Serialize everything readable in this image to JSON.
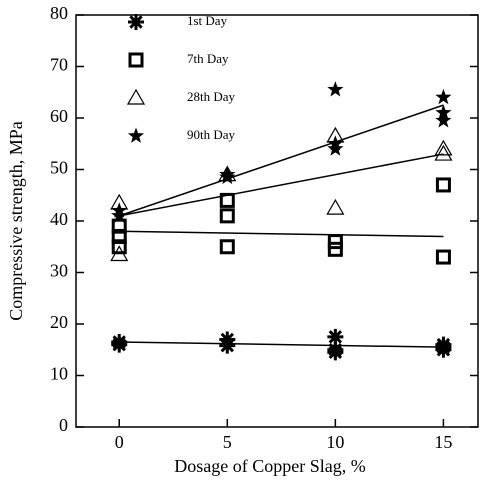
{
  "chart_data": {
    "type": "scatter",
    "x_label": "Dosage of Copper Slag, %",
    "y_label": "Compressive strength, MPa",
    "xlim": [
      -2,
      16.6
    ],
    "ylim": [
      0,
      80
    ],
    "xticks": [
      0,
      5,
      10,
      15
    ],
    "yticks": [
      0,
      10,
      20,
      30,
      40,
      50,
      60,
      70,
      80
    ],
    "color": "#000000",
    "legend": "top-left",
    "series": [
      {
        "name": "1st Day",
        "marker": "asterisk",
        "x": [
          0,
          0,
          5,
          5,
          10,
          10,
          10,
          15,
          15,
          15
        ],
        "y": [
          16.5,
          16,
          17,
          15.8,
          17.5,
          15,
          14.5,
          16,
          15,
          15.5
        ],
        "fit": {
          "x": [
            0,
            15
          ],
          "y": [
            16.5,
            15.5
          ]
        }
      },
      {
        "name": "7th Day",
        "marker": "square",
        "x": [
          0,
          0,
          0,
          5,
          5,
          5,
          10,
          10,
          15,
          15
        ],
        "y": [
          39,
          37,
          35,
          44,
          41,
          35,
          36,
          34.5,
          47,
          33
        ],
        "fit": {
          "x": [
            0,
            15
          ],
          "y": [
            38,
            37
          ]
        }
      },
      {
        "name": "28th Day",
        "marker": "triangle",
        "x": [
          0,
          0,
          5,
          10,
          10,
          15,
          15
        ],
        "y": [
          43.5,
          33.5,
          49,
          56.5,
          42.5,
          54,
          53
        ],
        "fit": {
          "x": [
            0,
            15
          ],
          "y": [
            41,
            53
          ]
        }
      },
      {
        "name": "90th Day",
        "marker": "star",
        "x": [
          0,
          0,
          5,
          5,
          10,
          10,
          10,
          15,
          15,
          15
        ],
        "y": [
          42,
          41,
          49,
          48.5,
          65.5,
          54,
          55,
          64,
          61,
          59.5
        ],
        "fit": {
          "x": [
            0,
            15
          ],
          "y": [
            41,
            62.5
          ]
        }
      }
    ]
  }
}
